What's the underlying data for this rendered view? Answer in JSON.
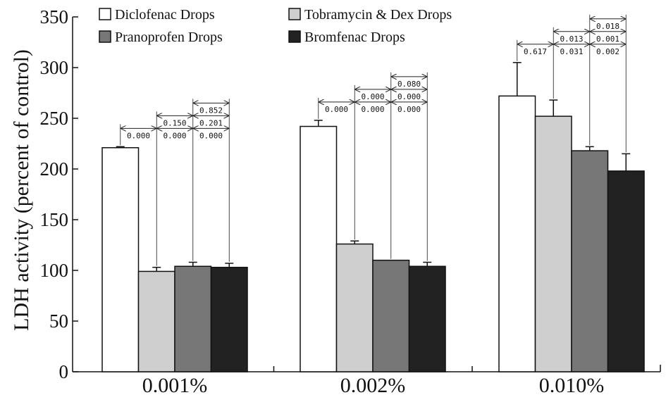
{
  "chart_data": {
    "type": "bar",
    "ylabel": "LDH activity (percent of control)",
    "xlabel": "",
    "ylim": [
      0,
      350
    ],
    "yticks": [
      0,
      50,
      100,
      150,
      200,
      250,
      300,
      350
    ],
    "categories": [
      "0.001%",
      "0.002%",
      "0.010%"
    ],
    "grid": false,
    "legend_position": "top",
    "series": [
      {
        "name": "Diclofenac Drops",
        "color": "#ffffff",
        "values": [
          221,
          242,
          272
        ],
        "errors": [
          1,
          6,
          33
        ]
      },
      {
        "name": "Tobramycin & Dex Drops",
        "color": "#cfcfcf",
        "values": [
          99,
          126,
          252
        ],
        "errors": [
          4,
          3,
          16
        ]
      },
      {
        "name": "Pranoprofen Drops",
        "color": "#777777",
        "values": [
          104,
          110,
          218
        ],
        "errors": [
          4,
          0,
          4
        ]
      },
      {
        "name": "Bromfenac Drops",
        "color": "#222222",
        "values": [
          103,
          104,
          198
        ],
        "errors": [
          4,
          4,
          17
        ]
      }
    ],
    "comparisons": [
      {
        "group": 0,
        "from": 0,
        "to": 1,
        "level": 0,
        "p": "0.000"
      },
      {
        "group": 0,
        "from": 1,
        "to": 2,
        "level": 0,
        "p": "0.000"
      },
      {
        "group": 0,
        "from": 1,
        "to": 2,
        "level": 1,
        "p": "0.150"
      },
      {
        "group": 0,
        "from": 2,
        "to": 3,
        "level": 0,
        "p": "0.000"
      },
      {
        "group": 0,
        "from": 2,
        "to": 3,
        "level": 1,
        "p": "0.201"
      },
      {
        "group": 0,
        "from": 2,
        "to": 3,
        "level": 2,
        "p": "0.852"
      },
      {
        "group": 1,
        "from": 0,
        "to": 1,
        "level": 0,
        "p": "0.000"
      },
      {
        "group": 1,
        "from": 1,
        "to": 2,
        "level": 0,
        "p": "0.000"
      },
      {
        "group": 1,
        "from": 1,
        "to": 2,
        "level": 1,
        "p": "0.000"
      },
      {
        "group": 1,
        "from": 2,
        "to": 3,
        "level": 0,
        "p": "0.000"
      },
      {
        "group": 1,
        "from": 2,
        "to": 3,
        "level": 1,
        "p": "0.000"
      },
      {
        "group": 1,
        "from": 2,
        "to": 3,
        "level": 2,
        "p": "0.080"
      },
      {
        "group": 2,
        "from": 0,
        "to": 1,
        "level": 0,
        "p": "0.617"
      },
      {
        "group": 2,
        "from": 1,
        "to": 2,
        "level": 0,
        "p": "0.031"
      },
      {
        "group": 2,
        "from": 1,
        "to": 2,
        "level": 1,
        "p": "0.013"
      },
      {
        "group": 2,
        "from": 2,
        "to": 3,
        "level": 0,
        "p": "0.002"
      },
      {
        "group": 2,
        "from": 2,
        "to": 3,
        "level": 1,
        "p": "0.001"
      },
      {
        "group": 2,
        "from": 2,
        "to": 3,
        "level": 2,
        "p": "0.018"
      }
    ]
  }
}
